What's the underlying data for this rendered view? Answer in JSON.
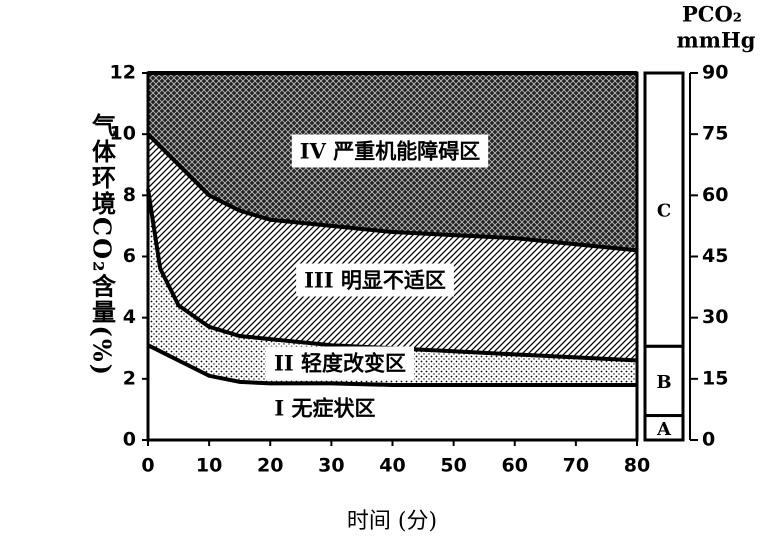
{
  "chart_data": {
    "type": "area",
    "x_label": "时间 (分)",
    "y_label": "气体环境CO₂含量(%)",
    "y2_label": [
      "PCO₂",
      "mmHg"
    ],
    "x": [
      0,
      2,
      5,
      10,
      15,
      20,
      30,
      40,
      50,
      60,
      70,
      80
    ],
    "xlim": [
      0,
      80
    ],
    "xticks": [
      0,
      10,
      20,
      30,
      40,
      50,
      60,
      70,
      80
    ],
    "ylim": [
      0,
      12
    ],
    "yticks": [
      0,
      2,
      4,
      6,
      8,
      10,
      12
    ],
    "y2lim": [
      0,
      90
    ],
    "y2ticks": [
      0,
      15,
      30,
      45,
      60,
      75,
      90
    ],
    "line_color": "#000000",
    "series": [
      {
        "name": "IV 严重机能障碍区",
        "pattern": "crosshatch",
        "values": [
          12,
          12,
          12,
          12,
          12,
          12,
          12,
          12,
          12,
          12,
          12,
          12
        ]
      },
      {
        "name": "III 明显不适区",
        "pattern": "hatch",
        "values": [
          10.0,
          9.6,
          9.0,
          8.0,
          7.5,
          7.2,
          7.0,
          6.8,
          6.7,
          6.6,
          6.4,
          6.2
        ]
      },
      {
        "name": "II 轻度改变区",
        "pattern": "dots",
        "values": [
          8.2,
          5.6,
          4.4,
          3.7,
          3.4,
          3.3,
          3.1,
          3.0,
          2.9,
          2.8,
          2.7,
          2.6
        ]
      },
      {
        "name": "I 无症状区",
        "pattern": "none",
        "values": [
          3.1,
          2.9,
          2.6,
          2.1,
          1.9,
          1.85,
          1.85,
          1.8,
          1.8,
          1.8,
          1.8,
          1.8
        ]
      }
    ],
    "bands": [
      {
        "label": "A",
        "range": [
          0,
          6
        ]
      },
      {
        "label": "B",
        "range": [
          6,
          23
        ]
      },
      {
        "label": "C",
        "range": [
          23,
          90
        ]
      }
    ]
  }
}
